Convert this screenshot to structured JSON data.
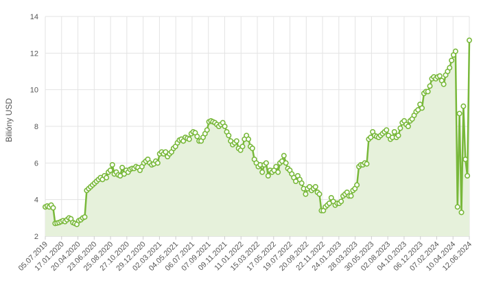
{
  "chart_data": {
    "type": "area",
    "title": "",
    "xlabel": "",
    "ylabel": "Bilióny USD",
    "ylim": [
      2,
      14
    ],
    "y_ticks": [
      "2",
      "4",
      "6",
      "8",
      "10",
      "12",
      "14"
    ],
    "x_tick_labels": [
      "05.07.2019",
      "17.01.2020",
      "20.04.2020",
      "23.06.2020",
      "25.08.2020",
      "27.10.2020",
      "29.12.2020",
      "02.03.2021",
      "04.05.2021",
      "06.07.2021",
      "07.09.2021",
      "09.11.2021",
      "11.01.2022",
      "15.03.2022",
      "17.05.2022",
      "19.07.2022",
      "20.09.2022",
      "22.11.2022",
      "24.01.2023",
      "28.03.2023",
      "30.05.2023",
      "02.08.2023",
      "04.10.2023",
      "06.12.2023",
      "07.02.2024",
      "10.04.2024",
      "12.06.2024"
    ],
    "grid": true,
    "legend": "none",
    "colors": {
      "line": "#78b83a",
      "fill": "#e6f1db",
      "marker_fill": "#ffffff",
      "grid": "#e3e3e3"
    },
    "series": [
      {
        "values": [
          3.6,
          3.65,
          3.6,
          3.7,
          3.55,
          2.7,
          2.72,
          2.75,
          2.8,
          2.85,
          2.8,
          2.9,
          3.0,
          2.95,
          2.75,
          2.7,
          2.65,
          2.85,
          2.9,
          3.0,
          3.05,
          4.5,
          4.6,
          4.7,
          4.8,
          4.9,
          5.0,
          5.1,
          5.2,
          5.1,
          5.3,
          5.2,
          5.5,
          5.6,
          5.9,
          5.4,
          5.5,
          5.35,
          5.3,
          5.75,
          5.4,
          5.6,
          5.5,
          5.65,
          5.7,
          5.7,
          5.8,
          5.75,
          5.6,
          5.8,
          6.0,
          6.1,
          6.2,
          6.0,
          5.9,
          5.95,
          6.1,
          6.0,
          6.5,
          6.6,
          6.5,
          6.6,
          6.35,
          6.5,
          6.6,
          6.8,
          6.9,
          7.1,
          7.25,
          7.3,
          7.2,
          7.4,
          7.35,
          7.3,
          7.6,
          7.7,
          7.65,
          7.45,
          7.2,
          7.2,
          7.4,
          7.6,
          7.8,
          8.25,
          8.3,
          8.25,
          8.2,
          8.1,
          8.0,
          8.1,
          8.2,
          8.0,
          7.7,
          7.5,
          7.2,
          7.0,
          7.1,
          7.2,
          6.8,
          6.7,
          6.9,
          7.3,
          7.5,
          7.3,
          6.9,
          6.8,
          6.2,
          6.0,
          5.8,
          5.9,
          5.5,
          5.9,
          6.0,
          5.3,
          5.6,
          5.5,
          5.6,
          5.8,
          5.5,
          6.0,
          6.1,
          6.4,
          6.0,
          5.7,
          5.6,
          5.4,
          5.2,
          5.0,
          5.3,
          5.1,
          4.9,
          4.6,
          4.3,
          4.6,
          4.7,
          4.5,
          4.6,
          4.7,
          4.4,
          4.3,
          3.4,
          3.4,
          3.6,
          3.7,
          3.8,
          4.1,
          3.9,
          3.7,
          3.8,
          3.8,
          3.9,
          4.2,
          4.3,
          4.4,
          4.2,
          4.2,
          4.5,
          4.6,
          4.8,
          5.8,
          5.9,
          5.9,
          6.0,
          5.95,
          7.3,
          7.4,
          7.7,
          7.5,
          7.45,
          7.4,
          7.5,
          7.6,
          7.7,
          7.8,
          7.5,
          7.3,
          7.4,
          7.7,
          7.4,
          7.5,
          7.9,
          8.2,
          8.3,
          8.1,
          8.0,
          8.3,
          8.4,
          8.6,
          8.8,
          8.9,
          9.2,
          9.0,
          9.8,
          9.9,
          9.9,
          10.2,
          10.6,
          10.7,
          10.6,
          10.7,
          10.75,
          10.5,
          10.3,
          10.8,
          11.0,
          11.2,
          11.6,
          11.9,
          12.1,
          3.6,
          8.7,
          3.3,
          9.1,
          6.2,
          5.3,
          12.7
        ]
      }
    ]
  }
}
